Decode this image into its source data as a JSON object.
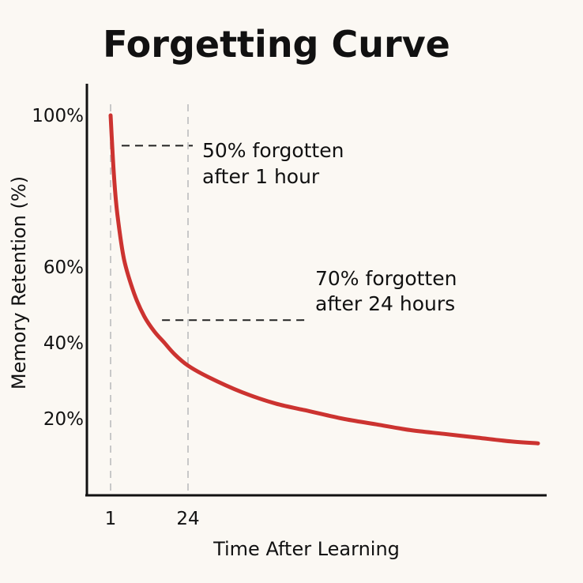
{
  "chart_data": {
    "type": "line",
    "title": "Forgetting Curve",
    "xlabel": "Time After Learning",
    "ylabel": "Memory Retention (%)",
    "x_ticks": [
      {
        "value": 1,
        "label": "1"
      },
      {
        "value": 24,
        "label": "24"
      }
    ],
    "y_ticks": [
      {
        "value": 100,
        "label": "100%"
      },
      {
        "value": 60,
        "label": "60%"
      },
      {
        "value": 40,
        "label": "40%"
      },
      {
        "value": 20,
        "label": "20%"
      }
    ],
    "ylim": [
      0,
      100
    ],
    "grid": false,
    "series": [
      {
        "color": "#cc3330",
        "x": [
          1,
          2,
          3,
          5,
          8,
          11,
          14,
          17,
          20,
          24,
          30,
          40,
          50,
          60,
          70,
          80,
          90,
          100,
          110,
          120,
          128
        ],
        "y": [
          100,
          84,
          74,
          62,
          53,
          47,
          43,
          40,
          37,
          34,
          31,
          27,
          24,
          22,
          20,
          18.5,
          17,
          16,
          15,
          14,
          13.5
        ]
      }
    ],
    "annotations": [
      {
        "lines": [
          "50% forgotten",
          "after 1 hour"
        ],
        "x_ref": 1,
        "y_ref": 92
      },
      {
        "lines": [
          "70% forgotten",
          "after 24 hours"
        ],
        "x_ref": 13,
        "y_ref": 46
      }
    ]
  }
}
